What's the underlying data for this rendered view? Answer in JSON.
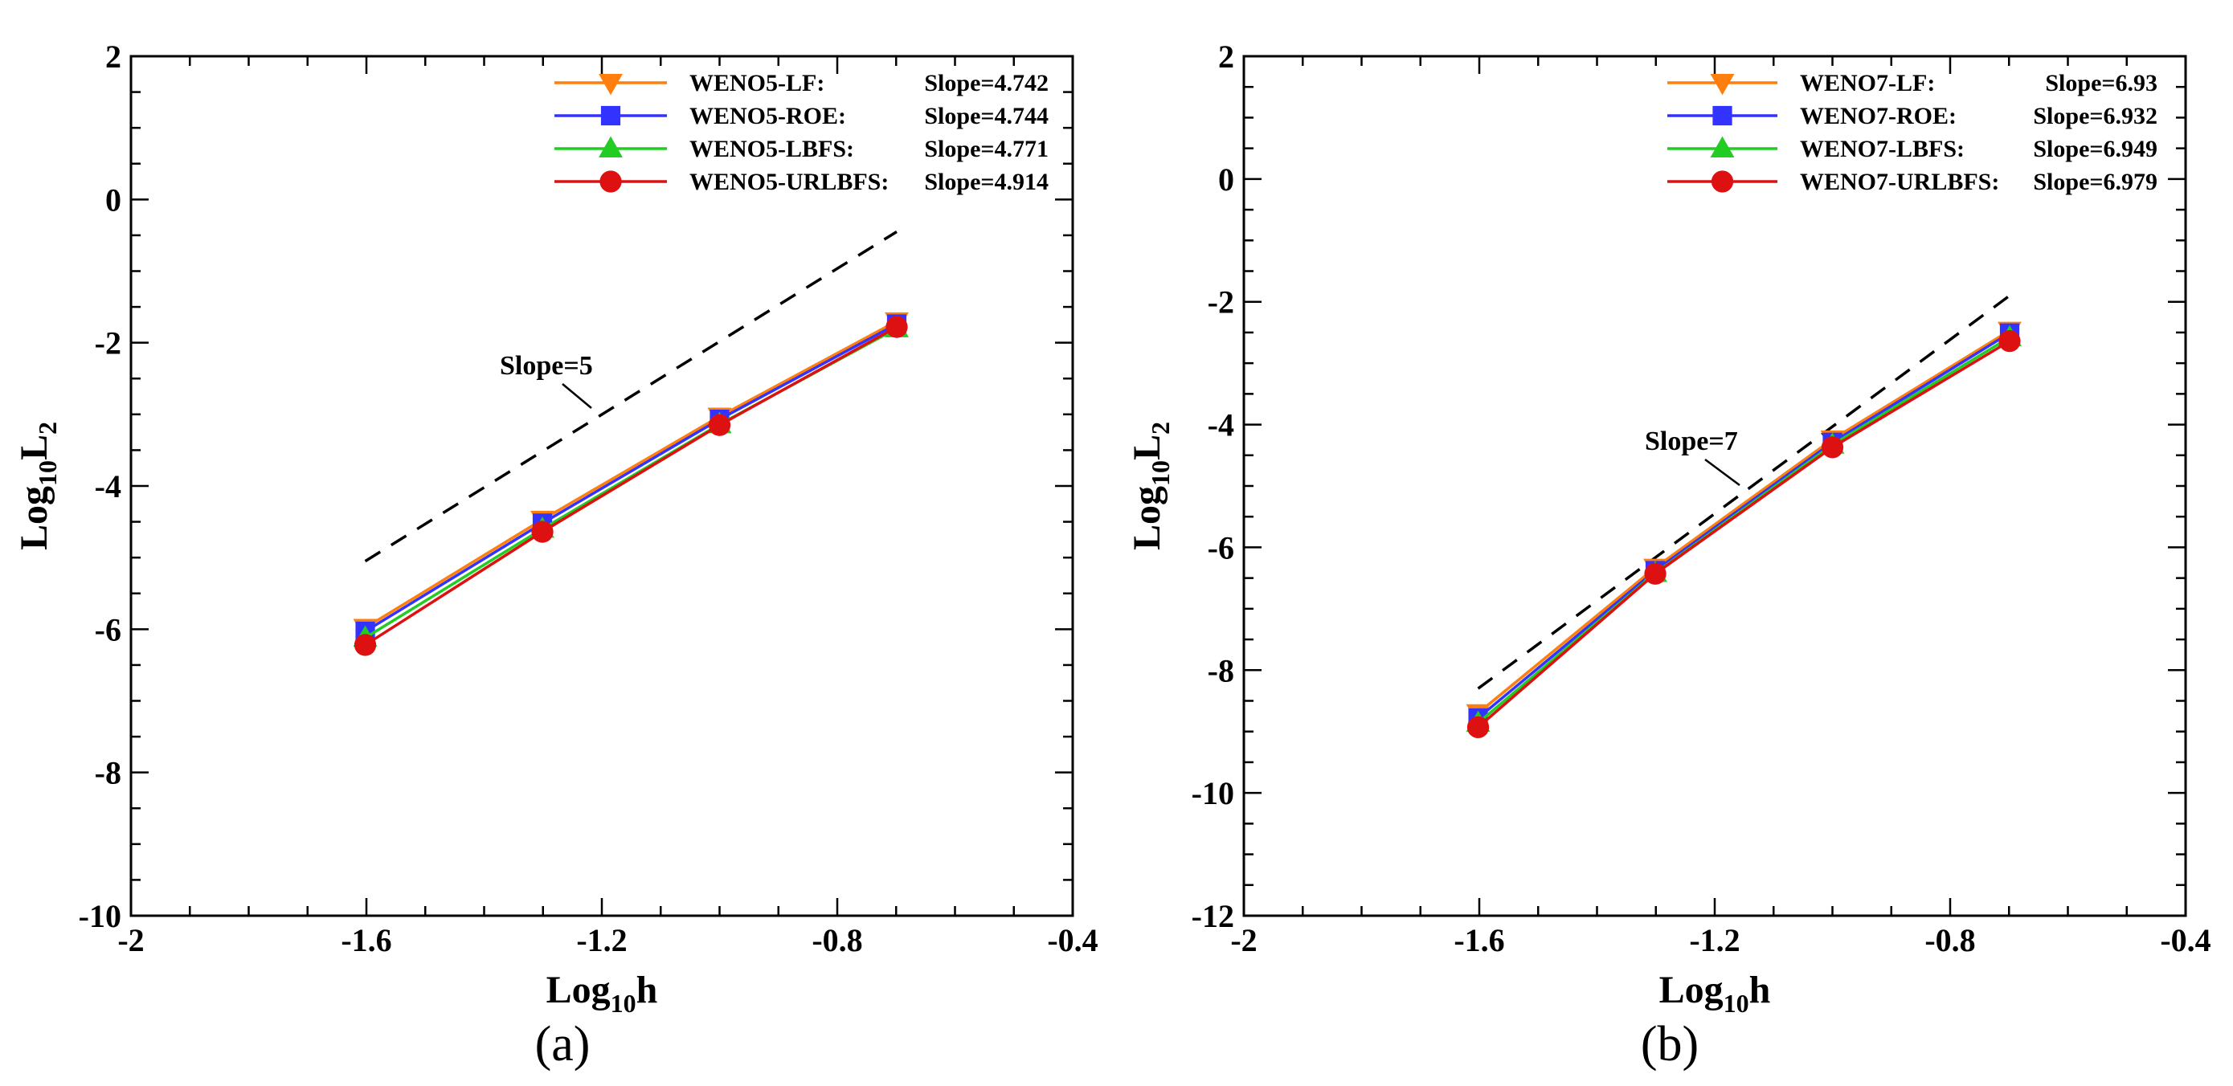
{
  "chart_data": [
    {
      "type": "line",
      "panel_label": "(a)",
      "xlabel": {
        "main": "Log",
        "sub": "10",
        "tail": "h"
      },
      "ylabel": {
        "main": "Log",
        "sub": "10",
        "tail": "L",
        "tail_sub": "2"
      },
      "xlim": [
        -2,
        -0.4
      ],
      "ylim": [
        -10,
        2
      ],
      "xticks": [
        -2,
        -1.6,
        -1.2,
        -0.8,
        -0.4
      ],
      "yticks": [
        -10,
        -8,
        -6,
        -4,
        -2,
        0,
        2
      ],
      "xtick_labels": [
        "-2",
        "-1.6",
        "-1.2",
        "-0.8",
        "-0.4"
      ],
      "ytick_labels": [
        "-10",
        "-8",
        "-6",
        "-4",
        "-2",
        "0",
        "2"
      ],
      "legend_position": "top-right",
      "series": [
        {
          "name": "WENO5-LF:",
          "slope_label": "Slope=4.742",
          "color": "#ff7f0e",
          "marker": "triangle-down",
          "x": [
            -1.602,
            -1.301,
            -1.0,
            -0.699
          ],
          "y": [
            -5.98,
            -4.47,
            -3.03,
            -1.7
          ]
        },
        {
          "name": "WENO5-ROE:",
          "slope_label": "Slope=4.744",
          "color": "#3333ff",
          "marker": "square",
          "x": [
            -1.602,
            -1.301,
            -1.0,
            -0.699
          ],
          "y": [
            -6.03,
            -4.52,
            -3.07,
            -1.74
          ]
        },
        {
          "name": "WENO5-LBFS:",
          "slope_label": "Slope=4.771",
          "color": "#22cc22",
          "marker": "triangle-up",
          "x": [
            -1.602,
            -1.301,
            -1.0,
            -0.699
          ],
          "y": [
            -6.12,
            -4.6,
            -3.14,
            -1.8
          ]
        },
        {
          "name": "WENO5-URLBFS:",
          "slope_label": "Slope=4.914",
          "color": "#dd1111",
          "marker": "circle",
          "x": [
            -1.602,
            -1.301,
            -1.0,
            -0.699
          ],
          "y": [
            -6.22,
            -4.64,
            -3.15,
            -1.78
          ]
        }
      ],
      "reference_line": {
        "x": [
          -1.602,
          -0.699
        ],
        "y": [
          -5.05,
          -0.45
        ],
        "label": "Slope=5",
        "label_at": [
          -1.99,
          -2.35
        ],
        "pointer_from": [
          -0.85,
          -0.3
        ],
        "pointer_to": [
          -0.8,
          -0.5
        ]
      }
    },
    {
      "type": "line",
      "panel_label": "(b)",
      "xlabel": {
        "main": "Log",
        "sub": "10",
        "tail": "h"
      },
      "ylabel": {
        "main": "Log",
        "sub": "10",
        "tail": "L",
        "tail_sub": "2"
      },
      "xlim": [
        -2,
        -0.4
      ],
      "ylim": [
        -12,
        2
      ],
      "xticks": [
        -2,
        -1.6,
        -1.2,
        -0.8,
        -0.4
      ],
      "yticks": [
        -12,
        -10,
        -8,
        -6,
        -4,
        -2,
        0,
        2
      ],
      "xtick_labels": [
        "-2",
        "-1.6",
        "-1.2",
        "-0.8",
        "-0.4"
      ],
      "ytick_labels": [
        "-12",
        "-10",
        "-8",
        "-6",
        "-4",
        "-2",
        "0",
        "2"
      ],
      "legend_position": "top-right",
      "series": [
        {
          "name": "WENO7-LF:",
          "slope_label": "Slope=6.93",
          "color": "#ff7f0e",
          "marker": "triangle-down",
          "x": [
            -1.602,
            -1.301,
            -1.0,
            -0.699
          ],
          "y": [
            -8.7,
            -6.33,
            -4.24,
            -2.47
          ]
        },
        {
          "name": "WENO7-ROE:",
          "slope_label": "Slope=6.932",
          "color": "#3333ff",
          "marker": "square",
          "x": [
            -1.602,
            -1.301,
            -1.0,
            -0.699
          ],
          "y": [
            -8.78,
            -6.38,
            -4.29,
            -2.51
          ]
        },
        {
          "name": "WENO7-LBFS:",
          "slope_label": "Slope=6.949",
          "color": "#22cc22",
          "marker": "triangle-up",
          "x": [
            -1.602,
            -1.301,
            -1.0,
            -0.699
          ],
          "y": [
            -8.86,
            -6.42,
            -4.33,
            -2.58
          ]
        },
        {
          "name": "WENO7-URLBFS:",
          "slope_label": "Slope=6.979",
          "color": "#dd1111",
          "marker": "circle",
          "x": [
            -1.602,
            -1.301,
            -1.0,
            -0.699
          ],
          "y": [
            -8.93,
            -6.43,
            -4.37,
            -2.64
          ]
        }
      ],
      "reference_line": {
        "x": [
          -1.602,
          -0.699
        ],
        "y": [
          -8.3,
          -1.9
        ],
        "label": "Slope=7",
        "label_at": [
          -1.28,
          -4.35
        ],
        "pointer_from": [
          -1.23,
          -4.75
        ],
        "pointer_to": [
          -1.18,
          -5.05
        ]
      }
    }
  ]
}
